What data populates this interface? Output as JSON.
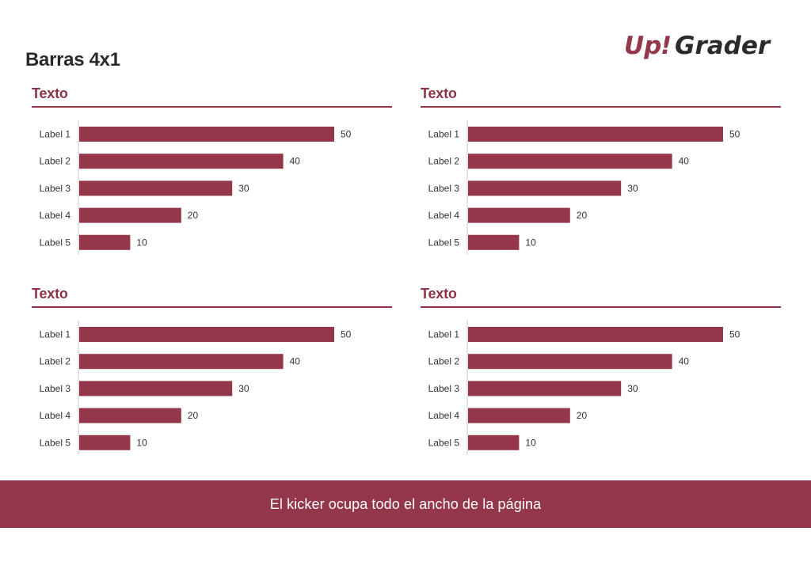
{
  "page": {
    "title": "Barras 4x1",
    "logo": {
      "part1": "Up",
      "mark": "!",
      "part2": "Grader"
    },
    "kicker": "El kicker ocupa todo el ancho de la página",
    "colors": {
      "accent": "#95374a",
      "bar": "#95374a",
      "logo_dark": "#2b2b2b"
    }
  },
  "chart_data": [
    {
      "type": "bar",
      "orientation": "horizontal",
      "title": "Texto",
      "categories": [
        "Label 1",
        "Label 2",
        "Label 3",
        "Label 4",
        "Label 5"
      ],
      "values": [
        50,
        40,
        30,
        20,
        10
      ],
      "xlim": [
        0,
        50
      ],
      "grid": false,
      "data_labels": true
    },
    {
      "type": "bar",
      "orientation": "horizontal",
      "title": "Texto",
      "categories": [
        "Label 1",
        "Label 2",
        "Label 3",
        "Label 4",
        "Label 5"
      ],
      "values": [
        50,
        40,
        30,
        20,
        10
      ],
      "xlim": [
        0,
        50
      ],
      "grid": false,
      "data_labels": true
    },
    {
      "type": "bar",
      "orientation": "horizontal",
      "title": "Texto",
      "categories": [
        "Label 1",
        "Label 2",
        "Label 3",
        "Label 4",
        "Label 5"
      ],
      "values": [
        50,
        40,
        30,
        20,
        10
      ],
      "xlim": [
        0,
        50
      ],
      "grid": false,
      "data_labels": true
    },
    {
      "type": "bar",
      "orientation": "horizontal",
      "title": "Texto",
      "categories": [
        "Label 1",
        "Label 2",
        "Label 3",
        "Label 4",
        "Label 5"
      ],
      "values": [
        50,
        40,
        30,
        20,
        10
      ],
      "xlim": [
        0,
        50
      ],
      "grid": false,
      "data_labels": true
    }
  ]
}
